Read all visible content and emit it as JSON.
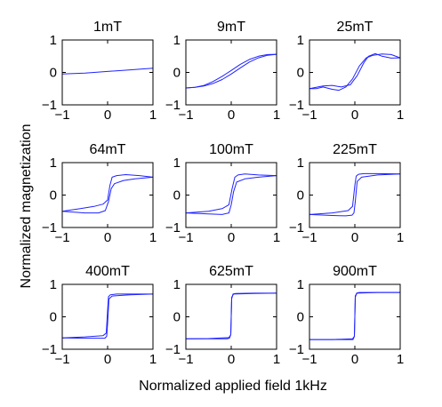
{
  "figure": {
    "xlabel": "Normalized applied field 1kHz",
    "ylabel": "Normalized magnetization"
  },
  "chart_data": {
    "type": "line",
    "grid": false,
    "line_color": "#1f22ff",
    "panels": [
      {
        "title": "1mT",
        "xlim": [
          -1,
          1
        ],
        "ylim": [
          -1,
          1
        ],
        "xticks": [
          "-1",
          "0",
          "1"
        ],
        "yticks": [
          "-1",
          "0",
          "1"
        ],
        "series": [
          {
            "x": [
              -1,
              -0.5,
              0,
              0.5,
              1
            ],
            "y": [
              -0.05,
              -0.02,
              0.03,
              0.08,
              0.13
            ]
          }
        ]
      },
      {
        "title": "9mT",
        "xlim": [
          -1,
          1
        ],
        "ylim": [
          -1,
          1
        ],
        "xticks": [
          "-1",
          "0",
          "1"
        ],
        "yticks": [
          "-1",
          "0",
          "1"
        ],
        "series": [
          {
            "x": [
              -1,
              -0.8,
              -0.6,
              -0.4,
              -0.2,
              0,
              0.2,
              0.4,
              0.6,
              0.8,
              1
            ],
            "y": [
              -0.48,
              -0.46,
              -0.42,
              -0.34,
              -0.22,
              -0.05,
              0.14,
              0.32,
              0.45,
              0.53,
              0.56
            ]
          },
          {
            "x": [
              1,
              0.8,
              0.6,
              0.4,
              0.2,
              0,
              -0.2,
              -0.4,
              -0.6,
              -0.8,
              -1
            ],
            "y": [
              0.56,
              0.55,
              0.5,
              0.4,
              0.25,
              0.06,
              -0.12,
              -0.28,
              -0.4,
              -0.46,
              -0.48
            ]
          }
        ]
      },
      {
        "title": "25mT",
        "xlim": [
          -1,
          1
        ],
        "ylim": [
          -1,
          1
        ],
        "xticks": [
          "-1",
          "0",
          "1"
        ],
        "yticks": [
          "-1",
          "0",
          "1"
        ],
        "series": [
          {
            "x": [
              -1,
              -0.7,
              -0.5,
              -0.3,
              -0.1,
              0.05,
              0.2,
              0.3,
              0.45,
              0.6,
              0.8,
              1
            ],
            "y": [
              -0.5,
              -0.42,
              -0.4,
              -0.45,
              -0.38,
              -0.1,
              0.3,
              0.5,
              0.58,
              0.5,
              0.44,
              0.45
            ]
          },
          {
            "x": [
              1,
              0.8,
              0.6,
              0.4,
              0.25,
              0.1,
              -0.05,
              -0.2,
              -0.35,
              -0.5,
              -0.7,
              -0.85,
              -1
            ],
            "y": [
              0.45,
              0.55,
              0.57,
              0.53,
              0.45,
              0.2,
              -0.2,
              -0.45,
              -0.55,
              -0.52,
              -0.45,
              -0.5,
              -0.5
            ]
          }
        ]
      },
      {
        "title": "64mT",
        "xlim": [
          -1,
          1
        ],
        "ylim": [
          -1,
          1
        ],
        "xticks": [
          "-1",
          "0",
          "1"
        ],
        "yticks": [
          "-1",
          "0",
          "1"
        ],
        "series": [
          {
            "x": [
              -1,
              -0.6,
              -0.3,
              -0.1,
              0,
              0.05,
              0.1,
              0.2,
              0.4,
              0.7,
              1
            ],
            "y": [
              -0.5,
              -0.42,
              -0.35,
              -0.28,
              -0.15,
              0.3,
              0.55,
              0.6,
              0.63,
              0.6,
              0.55
            ]
          },
          {
            "x": [
              1,
              0.6,
              0.35,
              0.15,
              0.08,
              0.02,
              -0.05,
              -0.2,
              -0.5,
              -1
            ],
            "y": [
              0.55,
              0.5,
              0.45,
              0.35,
              0.2,
              -0.2,
              -0.48,
              -0.55,
              -0.55,
              -0.5
            ]
          }
        ]
      },
      {
        "title": "100mT",
        "xlim": [
          -1,
          1
        ],
        "ylim": [
          -1,
          1
        ],
        "xticks": [
          "-1",
          "0",
          "1"
        ],
        "yticks": [
          "-1",
          "0",
          "1"
        ],
        "series": [
          {
            "x": [
              -1,
              -0.5,
              -0.2,
              -0.05,
              0.02,
              0.08,
              0.15,
              0.3,
              0.6,
              1
            ],
            "y": [
              -0.55,
              -0.5,
              -0.42,
              -0.3,
              0.2,
              0.55,
              0.62,
              0.65,
              0.62,
              0.6
            ]
          },
          {
            "x": [
              1,
              0.6,
              0.3,
              0.12,
              0.05,
              0,
              -0.05,
              -0.2,
              -0.5,
              -1
            ],
            "y": [
              0.6,
              0.55,
              0.5,
              0.4,
              0.1,
              -0.3,
              -0.55,
              -0.6,
              -0.58,
              -0.55
            ]
          }
        ]
      },
      {
        "title": "225mT",
        "xlim": [
          -1,
          1
        ],
        "ylim": [
          -1,
          1
        ],
        "xticks": [
          "-1",
          "0",
          "1"
        ],
        "yticks": [
          "-1",
          "0",
          "1"
        ],
        "series": [
          {
            "x": [
              -1,
              -0.5,
              -0.15,
              -0.05,
              0,
              0.03,
              0.08,
              0.2,
              0.5,
              1
            ],
            "y": [
              -0.6,
              -0.55,
              -0.48,
              -0.35,
              0.3,
              0.58,
              0.64,
              0.66,
              0.66,
              0.65
            ]
          },
          {
            "x": [
              1,
              0.5,
              0.15,
              0.05,
              0.01,
              -0.02,
              -0.06,
              -0.2,
              -0.5,
              -1
            ],
            "y": [
              0.65,
              0.62,
              0.55,
              0.42,
              -0.2,
              -0.55,
              -0.62,
              -0.64,
              -0.63,
              -0.6
            ]
          }
        ]
      },
      {
        "title": "400mT",
        "xlim": [
          -1,
          1
        ],
        "ylim": [
          -1,
          1
        ],
        "xticks": [
          "-1",
          "0",
          "1"
        ],
        "yticks": [
          "-1",
          "0",
          "1"
        ],
        "series": [
          {
            "x": [
              -1,
              -0.5,
              -0.1,
              -0.03,
              0,
              0.02,
              0.06,
              0.2,
              0.5,
              1
            ],
            "y": [
              -0.65,
              -0.62,
              -0.58,
              -0.5,
              0.2,
              0.62,
              0.68,
              0.7,
              0.7,
              0.7
            ]
          },
          {
            "x": [
              1,
              0.5,
              0.1,
              0.03,
              0,
              -0.02,
              -0.06,
              -0.2,
              -0.5,
              -1
            ],
            "y": [
              0.7,
              0.68,
              0.64,
              0.55,
              -0.2,
              -0.6,
              -0.66,
              -0.66,
              -0.66,
              -0.65
            ]
          }
        ]
      },
      {
        "title": "625mT",
        "xlim": [
          -1,
          1
        ],
        "ylim": [
          -1,
          1
        ],
        "xticks": [
          "-1",
          "0",
          "1"
        ],
        "yticks": [
          "-1",
          "0",
          "1"
        ],
        "series": [
          {
            "x": [
              -1,
              -0.5,
              -0.05,
              -0.01,
              0.01,
              0.04,
              0.1,
              0.5,
              1
            ],
            "y": [
              -0.68,
              -0.67,
              -0.64,
              -0.55,
              0.55,
              0.7,
              0.72,
              0.73,
              0.73
            ]
          },
          {
            "x": [
              1,
              0.5,
              0.05,
              0.01,
              -0.01,
              -0.04,
              -0.1,
              -0.5,
              -1
            ],
            "y": [
              0.73,
              0.72,
              0.7,
              0.6,
              -0.55,
              -0.66,
              -0.68,
              -0.68,
              -0.68
            ]
          }
        ]
      },
      {
        "title": "900mT",
        "xlim": [
          -1,
          1
        ],
        "ylim": [
          -1,
          1
        ],
        "xticks": [
          "-1",
          "0",
          "1"
        ],
        "yticks": [
          "-1",
          "0",
          "1"
        ],
        "series": [
          {
            "x": [
              -1,
              -0.5,
              -0.05,
              -0.01,
              0.01,
              0.04,
              0.1,
              0.5,
              1
            ],
            "y": [
              -0.7,
              -0.7,
              -0.68,
              -0.6,
              0.6,
              0.73,
              0.75,
              0.75,
              0.75
            ]
          },
          {
            "x": [
              1,
              0.5,
              0.05,
              0.01,
              -0.01,
              -0.04,
              -0.1,
              -0.5,
              -1
            ],
            "y": [
              0.75,
              0.75,
              0.73,
              0.65,
              -0.6,
              -0.7,
              -0.7,
              -0.7,
              -0.7
            ]
          }
        ]
      }
    ]
  }
}
